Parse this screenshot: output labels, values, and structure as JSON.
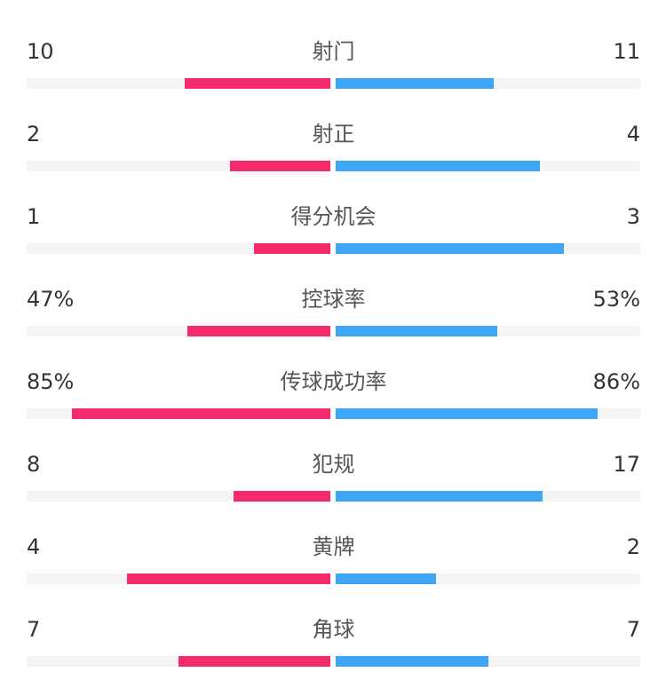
{
  "chart_data": {
    "type": "bar",
    "colors": {
      "home": "#f52a6b",
      "away": "#3ea6f5"
    },
    "stats": [
      {
        "label": "射门",
        "home": 10,
        "away": 11,
        "home_display": "10",
        "away_display": "11",
        "home_fill": 0.48,
        "away_fill": 0.52
      },
      {
        "label": "射正",
        "home": 2,
        "away": 4,
        "home_display": "2",
        "away_display": "4",
        "home_fill": 0.33,
        "away_fill": 0.67
      },
      {
        "label": "得分机会",
        "home": 1,
        "away": 3,
        "home_display": "1",
        "away_display": "3",
        "home_fill": 0.25,
        "away_fill": 0.75
      },
      {
        "label": "控球率",
        "home": 47,
        "away": 53,
        "home_display": "47%",
        "away_display": "53%",
        "home_fill": 0.47,
        "away_fill": 0.53
      },
      {
        "label": "传球成功率",
        "home": 85,
        "away": 86,
        "home_display": "85%",
        "away_display": "86%",
        "home_fill": 0.85,
        "away_fill": 0.86
      },
      {
        "label": "犯规",
        "home": 8,
        "away": 17,
        "home_display": "8",
        "away_display": "17",
        "home_fill": 0.32,
        "away_fill": 0.68
      },
      {
        "label": "黄牌",
        "home": 4,
        "away": 2,
        "home_display": "4",
        "away_display": "2",
        "home_fill": 0.67,
        "away_fill": 0.33
      },
      {
        "label": "角球",
        "home": 7,
        "away": 7,
        "home_display": "7",
        "away_display": "7",
        "home_fill": 0.5,
        "away_fill": 0.5
      }
    ]
  }
}
